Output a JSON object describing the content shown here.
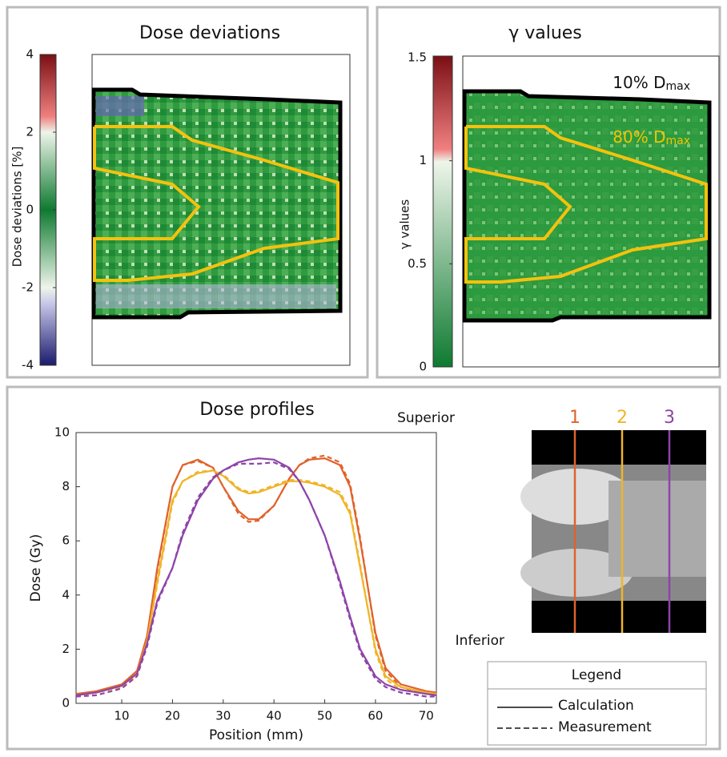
{
  "chart_data": [
    {
      "type": "heatmap",
      "title": "Dose deviations",
      "colorbar_label": "Dose deviations [%]",
      "clim": [
        -4,
        4
      ],
      "cticks": [
        -4,
        -2,
        0,
        2,
        4
      ]
    },
    {
      "type": "heatmap",
      "title": "γ values",
      "colorbar_label": "γ values",
      "clim": [
        0,
        1.5
      ],
      "cticks": [
        0,
        0.5,
        1,
        1.5
      ],
      "annotations": [
        {
          "text": "10% D",
          "sub": "max",
          "color": "#111111"
        },
        {
          "text": "80% D",
          "sub": "max",
          "color": "#f2c400"
        }
      ]
    },
    {
      "type": "line",
      "title": "Dose profiles",
      "xlabel": "Position (mm)",
      "ylabel": "Dose (Gy)",
      "xlim": [
        1,
        72
      ],
      "ylim": [
        0,
        10
      ],
      "xticks": [
        10,
        20,
        30,
        40,
        50,
        60,
        70
      ],
      "yticks": [
        0,
        2,
        4,
        6,
        8,
        10
      ],
      "x": [
        1,
        5,
        10,
        13,
        15,
        17,
        20,
        22,
        25,
        28,
        30,
        33,
        35,
        37,
        40,
        43,
        45,
        47,
        50,
        53,
        55,
        57,
        60,
        62,
        65,
        70,
        72
      ],
      "series": [
        {
          "color": "#e0622a",
          "dashed": false,
          "values": [
            0.35,
            0.45,
            0.7,
            1.2,
            2.5,
            5,
            8,
            8.8,
            9.0,
            8.7,
            8.0,
            7.1,
            6.8,
            6.8,
            7.3,
            8.3,
            8.8,
            9.0,
            9.05,
            8.8,
            8.0,
            6,
            2.6,
            1.3,
            0.7,
            0.45,
            0.4
          ]
        },
        {
          "color": "#e0622a",
          "dashed": true,
          "values": [
            0.3,
            0.4,
            0.65,
            1.1,
            2.4,
            4.9,
            8,
            8.8,
            8.95,
            8.7,
            8.0,
            7.0,
            6.7,
            6.75,
            7.3,
            8.3,
            8.8,
            9.05,
            9.15,
            8.9,
            8.1,
            6.1,
            2.5,
            1.2,
            0.6,
            0.35,
            0.3
          ]
        },
        {
          "color": "#f0b429",
          "dashed": false,
          "values": [
            0.3,
            0.4,
            0.65,
            1.1,
            2.3,
            4.5,
            7.5,
            8.2,
            8.5,
            8.6,
            8.4,
            7.9,
            7.75,
            7.8,
            8.0,
            8.2,
            8.2,
            8.15,
            8.0,
            7.7,
            7.0,
            5,
            2,
            1.0,
            0.6,
            0.4,
            0.35
          ]
        },
        {
          "color": "#f0b429",
          "dashed": true,
          "values": [
            0.3,
            0.4,
            0.6,
            1.0,
            2.2,
            4.4,
            7.4,
            8.2,
            8.55,
            8.6,
            8.45,
            7.95,
            7.8,
            7.85,
            8.05,
            8.25,
            8.25,
            8.2,
            8.05,
            7.8,
            7.1,
            5.1,
            1.9,
            0.9,
            0.5,
            0.35,
            0.3
          ]
        },
        {
          "color": "#8e44a8",
          "dashed": false,
          "values": [
            0.3,
            0.4,
            0.65,
            1.1,
            2.2,
            3.8,
            5,
            6.2,
            7.5,
            8.3,
            8.6,
            8.9,
            9.0,
            9.05,
            9.0,
            8.7,
            8.2,
            7.5,
            6.2,
            4.5,
            3.2,
            2,
            1.0,
            0.7,
            0.5,
            0.35,
            0.3
          ]
        },
        {
          "color": "#8e44a8",
          "dashed": true,
          "values": [
            0.25,
            0.3,
            0.55,
            1.0,
            2.1,
            3.7,
            5,
            6.3,
            7.6,
            8.35,
            8.6,
            8.85,
            8.85,
            8.85,
            8.9,
            8.65,
            8.2,
            7.5,
            6.2,
            4.4,
            3.1,
            1.9,
            0.9,
            0.6,
            0.4,
            0.25,
            0.25
          ]
        }
      ]
    }
  ],
  "profile_image": {
    "top_label": "Superior",
    "bottom_label": "Inferior",
    "profile_labels": [
      "1",
      "2",
      "3"
    ],
    "profile_colors": [
      "#e0622a",
      "#f0b429",
      "#8e44a8"
    ]
  },
  "legend": {
    "title": "Legend",
    "entries": [
      "Calculation",
      "Measurement"
    ]
  }
}
